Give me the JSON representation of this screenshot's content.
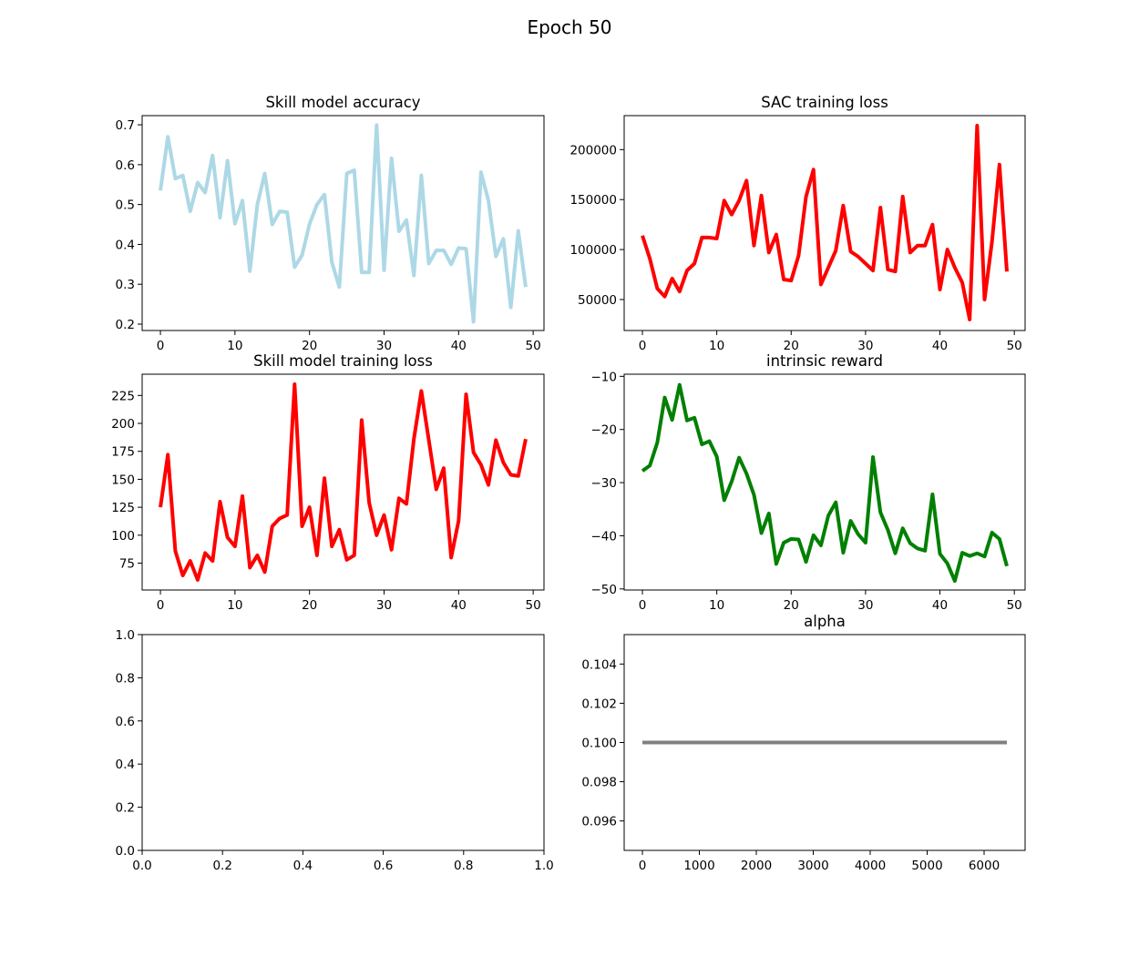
{
  "figure": {
    "title": "Epoch 50"
  },
  "chart_data": [
    {
      "id": "acc",
      "type": "line",
      "title": "Skill model accuracy",
      "color": "#add8e6",
      "xlim": [
        -2.45,
        51.45
      ],
      "ylim": [
        0.184,
        0.723
      ],
      "xticks": [
        0,
        10,
        20,
        30,
        40,
        50
      ],
      "yticks": [
        0.2,
        0.3,
        0.4,
        0.5,
        0.6,
        0.7
      ],
      "ytick_labels": [
        "0.2",
        "0.3",
        "0.4",
        "0.5",
        "0.6",
        "0.7"
      ],
      "x": [
        0,
        1,
        2,
        3,
        4,
        5,
        6,
        7,
        8,
        9,
        10,
        11,
        12,
        13,
        14,
        15,
        16,
        17,
        18,
        19,
        20,
        21,
        22,
        23,
        24,
        25,
        26,
        27,
        28,
        29,
        30,
        31,
        32,
        33,
        34,
        35,
        36,
        37,
        38,
        39,
        40,
        41,
        42,
        43,
        44,
        45,
        46,
        47,
        48,
        49
      ],
      "y": [
        0.535,
        0.67,
        0.565,
        0.573,
        0.483,
        0.555,
        0.53,
        0.623,
        0.467,
        0.61,
        0.452,
        0.51,
        0.333,
        0.5,
        0.578,
        0.45,
        0.483,
        0.481,
        0.343,
        0.373,
        0.451,
        0.5,
        0.525,
        0.355,
        0.293,
        0.578,
        0.586,
        0.33,
        0.33,
        0.699,
        0.335,
        0.616,
        0.433,
        0.461,
        0.322,
        0.573,
        0.352,
        0.385,
        0.385,
        0.35,
        0.391,
        0.389,
        0.206,
        0.581,
        0.51,
        0.37,
        0.414,
        0.242,
        0.434,
        0.293
      ]
    },
    {
      "id": "sac",
      "type": "line",
      "title": "SAC training loss",
      "color": "#ff0000",
      "xlim": [
        -2.45,
        51.45
      ],
      "ylim": [
        19000,
        234000
      ],
      "xticks": [
        0,
        10,
        20,
        30,
        40,
        50
      ],
      "yticks": [
        50000,
        100000,
        150000,
        200000
      ],
      "ytick_labels": [
        "50000",
        "100000",
        "150000",
        "200000"
      ],
      "x": [
        0,
        1,
        2,
        3,
        4,
        5,
        6,
        7,
        8,
        9,
        10,
        11,
        12,
        13,
        14,
        15,
        16,
        17,
        18,
        19,
        20,
        21,
        22,
        23,
        24,
        25,
        26,
        27,
        28,
        29,
        30,
        31,
        32,
        33,
        34,
        35,
        36,
        37,
        38,
        39,
        40,
        41,
        42,
        43,
        44,
        45,
        46,
        47,
        48,
        49
      ],
      "y": [
        114000,
        91000,
        61000,
        53000,
        71000,
        58000,
        79000,
        86000,
        112000,
        112000,
        111000,
        149000,
        135000,
        149000,
        169000,
        104000,
        154000,
        97000,
        115000,
        70000,
        69000,
        94000,
        153000,
        180000,
        65000,
        82000,
        99000,
        144000,
        98000,
        93000,
        86000,
        79000,
        142000,
        80000,
        78000,
        153000,
        97000,
        104000,
        104000,
        125000,
        60000,
        100000,
        82000,
        67000,
        30000,
        224000,
        50000,
        108000,
        185000,
        78000
      ]
    },
    {
      "id": "skill_loss",
      "type": "line",
      "title": "Skill model training loss",
      "color": "#ff0000",
      "xlim": [
        -2.45,
        51.45
      ],
      "ylim": [
        51,
        244
      ],
      "xticks": [
        0,
        10,
        20,
        30,
        40,
        50
      ],
      "yticks": [
        75,
        100,
        125,
        150,
        175,
        200,
        225
      ],
      "ytick_labels": [
        "75",
        "100",
        "125",
        "150",
        "175",
        "200",
        "225"
      ],
      "x": [
        0,
        1,
        2,
        3,
        4,
        5,
        6,
        7,
        8,
        9,
        10,
        11,
        12,
        13,
        14,
        15,
        16,
        17,
        18,
        19,
        20,
        21,
        22,
        23,
        24,
        25,
        26,
        27,
        28,
        29,
        30,
        31,
        32,
        33,
        34,
        35,
        36,
        37,
        38,
        39,
        40,
        41,
        42,
        43,
        44,
        45,
        46,
        47,
        48,
        49
      ],
      "y": [
        125,
        172,
        86,
        64,
        77,
        60,
        84,
        77,
        130,
        98,
        90,
        135,
        71,
        82,
        67,
        108,
        115,
        118,
        235,
        108,
        125,
        82,
        151,
        90,
        105,
        78,
        82,
        203,
        129,
        100,
        118,
        87,
        133,
        128,
        186,
        229,
        185,
        141,
        160,
        80,
        113,
        226,
        174,
        163,
        145,
        185,
        165,
        154,
        153,
        186
      ]
    },
    {
      "id": "reward",
      "type": "line",
      "title": "intrinsic reward",
      "color": "#008000",
      "xlim": [
        -2.45,
        51.45
      ],
      "ylim": [
        -50.2,
        -9.6
      ],
      "xticks": [
        0,
        10,
        20,
        30,
        40,
        50
      ],
      "yticks": [
        -50,
        -40,
        -30,
        -20,
        -10
      ],
      "ytick_labels": [
        "−50",
        "−40",
        "−30",
        "−20",
        "−10"
      ],
      "x": [
        0,
        1,
        2,
        3,
        4,
        5,
        6,
        7,
        8,
        9,
        10,
        11,
        12,
        13,
        14,
        15,
        16,
        17,
        18,
        19,
        20,
        21,
        22,
        23,
        24,
        25,
        26,
        27,
        28,
        29,
        30,
        31,
        32,
        33,
        34,
        35,
        36,
        37,
        38,
        39,
        40,
        41,
        42,
        43,
        44,
        45,
        46,
        47,
        48,
        49
      ],
      "y": [
        -27.8,
        -26.8,
        -22.5,
        -14.0,
        -18.2,
        -11.6,
        -18.3,
        -17.8,
        -22.8,
        -22.2,
        -25.1,
        -33.3,
        -29.8,
        -25.3,
        -28.3,
        -32.3,
        -39.5,
        -35.8,
        -45.3,
        -41.3,
        -40.6,
        -40.7,
        -44.9,
        -39.9,
        -41.8,
        -36.2,
        -33.7,
        -43.2,
        -37.2,
        -39.7,
        -41.3,
        -25.2,
        -35.6,
        -38.9,
        -43.3,
        -38.6,
        -41.4,
        -42.4,
        -42.8,
        -32.2,
        -43.4,
        -45.2,
        -48.5,
        -43.2,
        -43.8,
        -43.3,
        -43.9,
        -39.4,
        -40.6,
        -45.7
      ]
    },
    {
      "id": "empty",
      "type": "line",
      "title": "",
      "color": "#000000",
      "xlim": [
        0,
        1
      ],
      "ylim": [
        0,
        1
      ],
      "xticks": [
        0.0,
        0.2,
        0.4,
        0.6,
        0.8,
        1.0
      ],
      "xtick_labels": [
        "0.0",
        "0.2",
        "0.4",
        "0.6",
        "0.8",
        "1.0"
      ],
      "yticks": [
        0.0,
        0.2,
        0.4,
        0.6,
        0.8,
        1.0
      ],
      "ytick_labels": [
        "0.0",
        "0.2",
        "0.4",
        "0.6",
        "0.8",
        "1.0"
      ],
      "x": [],
      "y": []
    },
    {
      "id": "alpha",
      "type": "line",
      "title": "alpha",
      "color": "#808080",
      "xlim": [
        -320,
        6720
      ],
      "ylim": [
        0.0945,
        0.1055
      ],
      "xticks": [
        0,
        1000,
        2000,
        3000,
        4000,
        5000,
        6000
      ],
      "yticks": [
        0.096,
        0.098,
        0.1,
        0.102,
        0.104
      ],
      "ytick_labels": [
        "0.096",
        "0.098",
        "0.100",
        "0.102",
        "0.104"
      ],
      "x": [
        0,
        6400
      ],
      "y": [
        0.1,
        0.1
      ]
    }
  ]
}
